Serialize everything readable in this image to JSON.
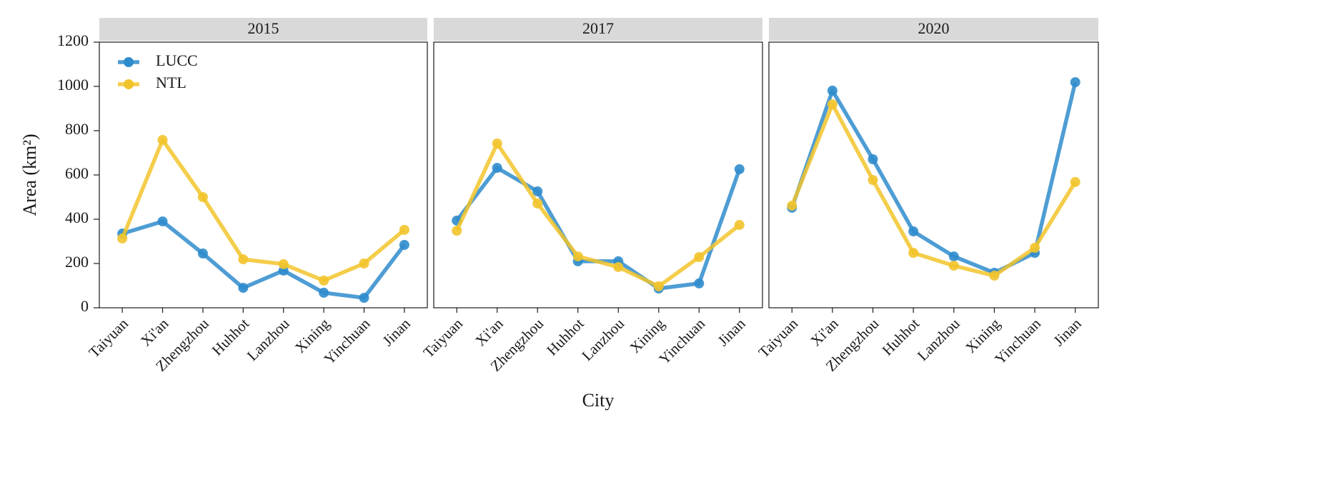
{
  "chart_data": [
    {
      "type": "line",
      "title": "2015",
      "y_label": "Area (km²)",
      "legend": "upper left",
      "ylim": [
        0,
        1200
      ],
      "yticks": [
        0,
        200,
        400,
        600,
        800,
        1000,
        1200
      ],
      "categories": [
        "Taiyuan",
        "Xi'an",
        "Zhengzhou",
        "Huhhot",
        "Lanzhou",
        "Xining",
        "Yinchuan",
        "Jinan"
      ],
      "series": [
        {
          "name": "LUCC",
          "color": "#2f8ccc",
          "values": [
            335,
            390,
            245,
            90,
            168,
            68,
            45,
            284
          ]
        },
        {
          "name": "NTL",
          "color": "#f2c42c",
          "values": [
            313,
            758,
            500,
            219,
            197,
            123,
            200,
            352
          ]
        }
      ]
    },
    {
      "type": "line",
      "title": "2017",
      "x_label": "City",
      "categories": [
        "Taiyuan",
        "Xi'an",
        "Zhengzhou",
        "Huhhot",
        "Lanzhou",
        "Xining",
        "Yinchuan",
        "Jinan"
      ],
      "series": [
        {
          "color": "#2f8ccc",
          "values": [
            394,
            632,
            526,
            210,
            210,
            87,
            110,
            626
          ]
        },
        {
          "color": "#f2c42c",
          "values": [
            348,
            742,
            471,
            232,
            184,
            97,
            229,
            374
          ]
        }
      ]
    },
    {
      "type": "line",
      "title": "2020",
      "categories": [
        "Taiyuan",
        "Xi'an",
        "Zhengzhou",
        "Huhhot",
        "Lanzhou",
        "Xining",
        "Yinchuan",
        "Jinan"
      ],
      "series": [
        {
          "color": "#2f8ccc",
          "values": [
            452,
            981,
            671,
            345,
            232,
            158,
            248,
            1019
          ]
        },
        {
          "color": "#f2c42c",
          "values": [
            461,
            919,
            577,
            248,
            190,
            145,
            271,
            568
          ]
        }
      ]
    }
  ]
}
